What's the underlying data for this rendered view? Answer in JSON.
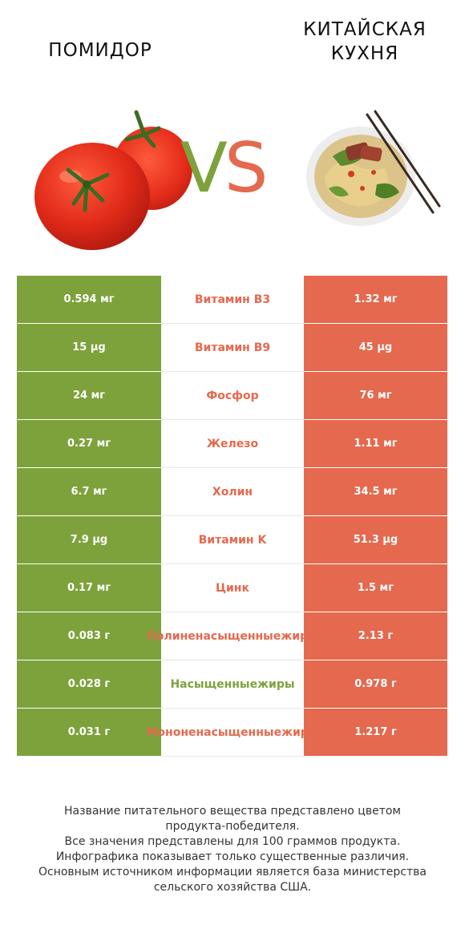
{
  "header": {
    "left_title": "ПОМИДОР",
    "right_title_line1": "КИТАЙСКАЯ",
    "right_title_line2": "КУХНЯ",
    "vs_v": "V",
    "vs_s": "S"
  },
  "colors": {
    "left_accent": "#7da23b",
    "right_accent": "#e4694e"
  },
  "rows": [
    {
      "left": "0.594 мг",
      "name": [
        "Витамин B3"
      ],
      "winner": "right",
      "right": "1.32 мг"
    },
    {
      "left": "15 µg",
      "name": [
        "Витамин B9"
      ],
      "winner": "right",
      "right": "45 µg"
    },
    {
      "left": "24 мг",
      "name": [
        "Фосфор"
      ],
      "winner": "right",
      "right": "76 мг"
    },
    {
      "left": "0.27 мг",
      "name": [
        "Железо"
      ],
      "winner": "right",
      "right": "1.11 мг"
    },
    {
      "left": "6.7 мг",
      "name": [
        "Холин"
      ],
      "winner": "right",
      "right": "34.5 мг"
    },
    {
      "left": "7.9 µg",
      "name": [
        "Витамин K"
      ],
      "winner": "right",
      "right": "51.3 µg"
    },
    {
      "left": "0.17 мг",
      "name": [
        "Цинк"
      ],
      "winner": "right",
      "right": "1.5 мг"
    },
    {
      "left": "0.083 г",
      "name": [
        "Полиненасыщенные",
        "жиры"
      ],
      "winner": "right",
      "right": "2.13 г"
    },
    {
      "left": "0.028 г",
      "name": [
        "Насыщенные",
        "жиры"
      ],
      "winner": "left",
      "right": "0.978 г"
    },
    {
      "left": "0.031 г",
      "name": [
        "Мононенасыщенные",
        "жиры"
      ],
      "winner": "right",
      "right": "1.217 г"
    }
  ],
  "footer": [
    "Название питательного вещества представлено цветом",
    "продукта-победителя.",
    "Все значения представлены для 100 граммов продукта.",
    "Инфографика показывает только существенные различия.",
    "Основным источником информации является база министерства",
    "сельского хозяйства США."
  ],
  "images": {
    "left": "tomato-image",
    "right": "noodle-soup-image"
  }
}
